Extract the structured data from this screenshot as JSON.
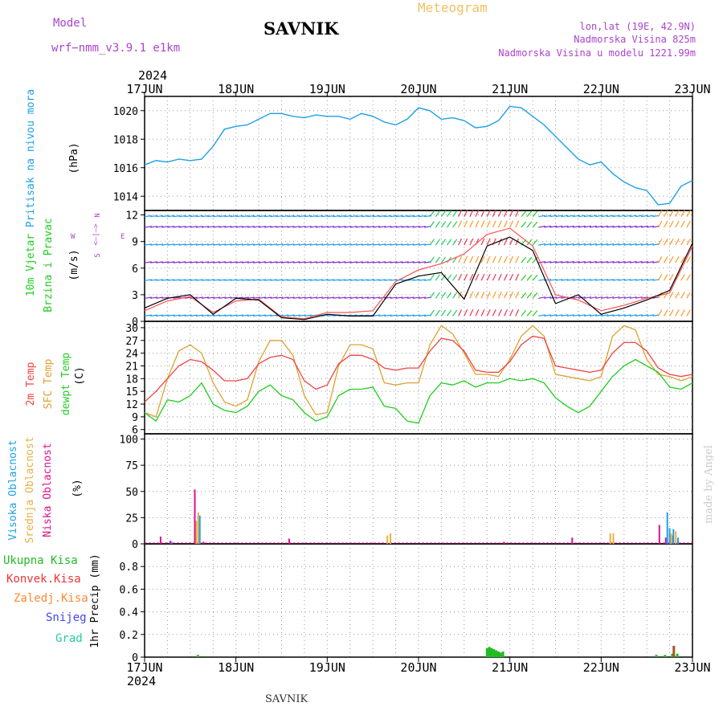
{
  "header": {
    "model_label": "Model",
    "model_value": "wrf−nmm_v3.9.1  e1km",
    "station": "SAVNIK",
    "product": "Meteogram",
    "lonlat": "lon,lat (19E, 42.9N)",
    "altitude": "Nadmorska Visina 825m",
    "model_altitude": "Nadmorska Visina u modelu 1221.99m",
    "footer_station": "SAVNIK",
    "watermark": "made by Angel",
    "year_top": "2024",
    "year_bottom": "2024"
  },
  "days": [
    "17JUN",
    "18JUN",
    "19JUN",
    "20JUN",
    "21JUN",
    "22JUN",
    "23JUN"
  ],
  "colors": {
    "pressure": "#1ea0e6",
    "wind_obs": "#000000",
    "wind_model": "#ff5050",
    "t2m": "#ee4444",
    "tsfc": "#e0a030",
    "dewpt": "#22cc22",
    "cloud_high": "#1ea0e6",
    "cloud_mid": "#e8b040",
    "cloud_low": "#dd1188",
    "rain_total": "#22bb22",
    "rain_conv": "#ee3333",
    "rain_frz": "#ff8833",
    "snow": "#4444ee",
    "hail": "#22ccaa"
  },
  "panels": {
    "pressure": {
      "label": "Pritisak na nivou mora",
      "unit": "(hPa)"
    },
    "wind": {
      "label1": "10m Vjetar",
      "label2": "Brzina i Pravac",
      "unit": "(m/s)",
      "compass": {
        "n": "N",
        "s": "S",
        "e": "E",
        "w": "W",
        "sep": "<—|—>"
      }
    },
    "temp": {
      "label1": "2m Temp",
      "label2": "SFC Temp",
      "label3": "dewpt Temp",
      "unit": "(C)"
    },
    "cloud": {
      "label1": "Visoka Oblacnost",
      "label2": "Srednja Oblacnost",
      "label3": "Niska Oblacnost",
      "unit": "(%)"
    },
    "precip": {
      "labels": [
        "Ukupna Kisa",
        "Konvek.Kisa",
        "Zaledj.Kisa",
        "Snijeg",
        "Grad"
      ],
      "unit": "1hr Precip (mm)"
    }
  },
  "chart_data": [
    {
      "type": "line",
      "title": "Pritisak na nivou mora",
      "ylabel": "(hPa)",
      "ylim": [
        1013,
        1021
      ],
      "yticks": [
        1014,
        1016,
        1018,
        1020
      ],
      "grid": true,
      "x_hours": [
        0,
        3,
        6,
        9,
        12,
        15,
        18,
        21,
        24,
        27,
        30,
        33,
        36,
        39,
        42,
        45,
        48,
        51,
        54,
        57,
        60,
        63,
        66,
        69,
        72,
        75,
        78,
        81,
        84,
        87,
        90,
        93,
        96,
        99,
        102,
        105,
        108,
        111,
        114,
        117,
        120,
        123,
        126,
        129,
        132,
        135,
        138,
        141,
        144
      ],
      "series": [
        {
          "name": "pressure",
          "values": [
            1016.2,
            1016.5,
            1016.4,
            1016.6,
            1016.5,
            1016.6,
            1017.5,
            1018.7,
            1018.9,
            1019.0,
            1019.4,
            1019.8,
            1019.8,
            1019.6,
            1019.5,
            1019.7,
            1019.6,
            1019.6,
            1019.4,
            1019.8,
            1019.6,
            1019.2,
            1019.0,
            1019.4,
            1020.2,
            1020.0,
            1019.4,
            1019.5,
            1019.3,
            1018.8,
            1018.9,
            1019.3,
            1020.3,
            1020.2,
            1019.6,
            1019.0,
            1018.2,
            1017.4,
            1016.6,
            1016.2,
            1016.4,
            1015.6,
            1015.0,
            1014.6,
            1014.4,
            1013.4,
            1013.5,
            1014.7,
            1015.1
          ]
        }
      ]
    },
    {
      "type": "line",
      "title": "10m Vjetar Brzina i Pravac",
      "ylabel": "(m/s)",
      "ylim": [
        0,
        12.5
      ],
      "yticks": [
        0,
        3,
        6,
        9,
        12
      ],
      "grid": true,
      "x_hours": [
        0,
        6,
        12,
        18,
        24,
        30,
        36,
        42,
        48,
        54,
        60,
        66,
        72,
        78,
        84,
        90,
        96,
        102,
        108,
        114,
        120,
        126,
        132,
        138,
        144
      ],
      "series": [
        {
          "name": "obs",
          "values": [
            1.5,
            2.6,
            3.0,
            0.8,
            2.6,
            2.4,
            0.4,
            0.2,
            0.8,
            0.6,
            0.6,
            4.2,
            5.1,
            5.5,
            2.5,
            8.5,
            9.5,
            8.0,
            2.0,
            3.0,
            0.8,
            1.5,
            2.4,
            3.5,
            8.8
          ]
        },
        {
          "name": "model",
          "values": [
            1.2,
            2.3,
            2.8,
            1.0,
            2.3,
            2.5,
            0.5,
            0.3,
            1.0,
            1.0,
            1.2,
            4.5,
            5.8,
            6.5,
            7.6,
            9.8,
            10.5,
            8.5,
            3.0,
            2.4,
            1.2,
            1.8,
            2.6,
            3.2,
            8.5
          ]
        }
      ]
    },
    {
      "type": "line",
      "title": "2m Temp / SFC Temp / dewpt Temp",
      "ylabel": "(C)",
      "ylim": [
        5,
        31.5
      ],
      "yticks": [
        6,
        9,
        12,
        15,
        18,
        21,
        24,
        27,
        30
      ],
      "grid": true,
      "x_hours": [
        0,
        3,
        6,
        9,
        12,
        15,
        18,
        21,
        24,
        27,
        30,
        33,
        36,
        39,
        42,
        45,
        48,
        51,
        54,
        57,
        60,
        63,
        66,
        69,
        72,
        75,
        78,
        81,
        84,
        87,
        90,
        93,
        96,
        99,
        102,
        105,
        108,
        111,
        114,
        117,
        120,
        123,
        126,
        129,
        132,
        135,
        138,
        141,
        144
      ],
      "series": [
        {
          "name": "2m Temp",
          "values": [
            12.5,
            15.0,
            18.0,
            21.0,
            22.5,
            22.0,
            20.0,
            17.5,
            17.5,
            18.0,
            21.5,
            23.0,
            23.5,
            22.5,
            17.5,
            15.5,
            16.5,
            21.5,
            23.5,
            23.5,
            22.5,
            20.5,
            20.0,
            20.5,
            20.5,
            24.5,
            27.5,
            27.0,
            24.5,
            20.0,
            19.5,
            19.5,
            22.0,
            26.0,
            28.0,
            27.5,
            21.0,
            20.5,
            20.0,
            19.5,
            20.0,
            24.0,
            26.5,
            26.5,
            24.5,
            20.5,
            19.0,
            18.5,
            19.0
          ]
        },
        {
          "name": "SFC Temp",
          "values": [
            10.0,
            9.0,
            18.0,
            24.5,
            26.0,
            24.0,
            17.0,
            12.5,
            11.5,
            13.0,
            22.0,
            27.0,
            27.0,
            23.5,
            14.0,
            9.5,
            10.0,
            21.0,
            26.0,
            26.0,
            25.0,
            17.0,
            16.5,
            17.0,
            17.0,
            26.0,
            30.5,
            28.5,
            24.0,
            19.0,
            19.0,
            18.5,
            22.5,
            28.0,
            30.5,
            28.0,
            19.0,
            18.5,
            18.0,
            17.5,
            18.5,
            28.0,
            30.5,
            29.5,
            22.5,
            19.0,
            18.5,
            17.5,
            18.5
          ]
        },
        {
          "name": "dewpt Temp",
          "values": [
            10.0,
            8.0,
            13.0,
            12.5,
            14.0,
            17.0,
            12.0,
            10.5,
            10.0,
            11.5,
            15.0,
            16.5,
            14.0,
            13.0,
            10.0,
            8.0,
            9.0,
            14.0,
            15.5,
            15.5,
            16.0,
            11.5,
            11.0,
            8.0,
            7.5,
            14.0,
            17.0,
            16.5,
            17.5,
            16.0,
            17.0,
            17.0,
            18.0,
            17.5,
            18.0,
            17.0,
            13.5,
            11.5,
            10.0,
            11.5,
            15.0,
            18.5,
            21.0,
            22.5,
            21.0,
            19.5,
            16.0,
            15.5,
            17.0
          ]
        }
      ]
    },
    {
      "type": "bar",
      "title": "Visoka / Srednja / Niska Oblacnost",
      "ylabel": "(%)",
      "ylim": [
        0,
        105
      ],
      "yticks": [
        0,
        25,
        50,
        75,
        100
      ],
      "grid": true,
      "series": [
        {
          "name": "Niska Oblacnost",
          "bars": [
            [
              4.2,
              7
            ],
            [
              6.8,
              3
            ],
            [
              13.2,
              52
            ],
            [
              15.5,
              2
            ],
            [
              38.0,
              5
            ],
            [
              94.5,
              2
            ],
            [
              112.4,
              6
            ],
            [
              135.3,
              18
            ],
            [
              137.0,
              6
            ],
            [
              138.9,
              8
            ]
          ]
        },
        {
          "name": "Srednja Oblacnost",
          "bars": [
            [
              13.6,
              22
            ],
            [
              14.1,
              30
            ],
            [
              63.8,
              8
            ],
            [
              64.6,
              10
            ],
            [
              122.4,
              10
            ],
            [
              123.2,
              10
            ],
            [
              138.4,
              10
            ],
            [
              139.6,
              12
            ]
          ]
        },
        {
          "name": "Visoka Oblacnost",
          "bars": [
            [
              7.1,
              2
            ],
            [
              14.5,
              27
            ],
            [
              137.4,
              30
            ],
            [
              138.0,
              15
            ],
            [
              139.0,
              14
            ],
            [
              140.2,
              6
            ]
          ]
        }
      ]
    },
    {
      "type": "bar",
      "title": "1hr Precip",
      "ylabel": "1hr Precip (mm)",
      "ylim": [
        0,
        1.0
      ],
      "yticks": [
        0,
        0.2,
        0.4,
        0.6,
        0.8
      ],
      "grid": true,
      "series": [
        {
          "name": "Ukupna Kisa",
          "bars": [
            [
              14.0,
              0.02
            ],
            [
              90.0,
              0.08
            ],
            [
              90.6,
              0.09
            ],
            [
              91.2,
              0.08
            ],
            [
              91.8,
              0.07
            ],
            [
              92.4,
              0.06
            ],
            [
              93.0,
              0.05
            ],
            [
              93.6,
              0.04
            ],
            [
              94.2,
              0.05
            ],
            [
              134.5,
              0.02
            ],
            [
              136.8,
              0.02
            ],
            [
              138.7,
              0.03
            ],
            [
              140.0,
              0.03
            ]
          ]
        },
        {
          "name": "Konvek.Kisa",
          "bars": [
            [
              139.1,
              0.1
            ]
          ]
        }
      ]
    }
  ]
}
